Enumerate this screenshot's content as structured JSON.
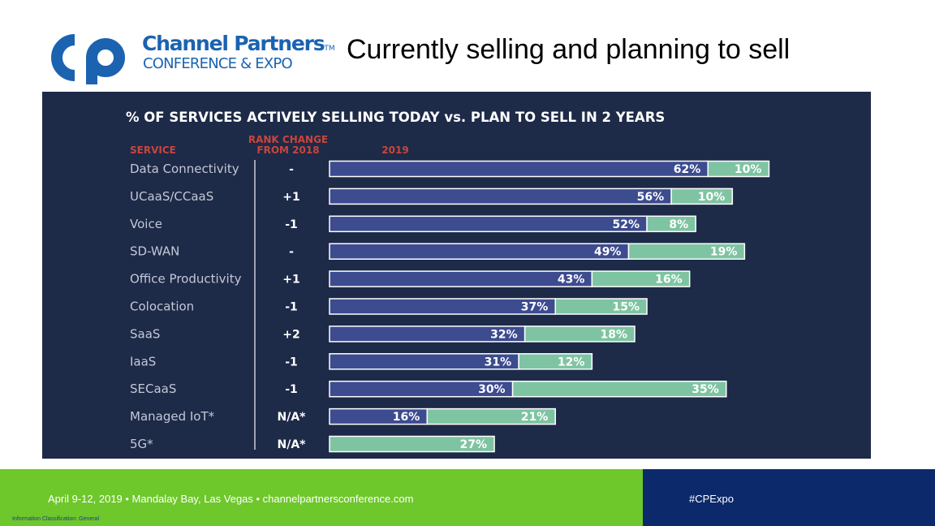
{
  "header": {
    "logo_name": "Channel Partners",
    "logo_trademark": "TM",
    "logo_sub": "CONFERENCE & EXPO",
    "slide_title": "Currently selling and planning to sell"
  },
  "footer": {
    "event_info": "April 9-12, 2019 • Mandalay Bay, Las Vegas • channelpartnersconference.com",
    "classification": "Information Classification: General",
    "hashtag": "#CPExpo"
  },
  "colors": {
    "brand_blue": "#1b63b0",
    "panel_bg": "#1d2a48",
    "bar_selling": "#3d4b8f",
    "bar_plan": "#7fc4a2",
    "header_red": "#c9453c",
    "footer_green": "#6ec72b",
    "footer_navy": "#0c2a6b"
  },
  "chart_data": {
    "type": "bar",
    "orientation": "horizontal",
    "stacked": true,
    "title": "% OF SERVICES ACTIVELY SELLING TODAY vs. PLAN TO SELL IN 2 YEARS",
    "column_headers": {
      "service": "SERVICE",
      "rank_change": "RANK CHANGE\nFROM 2018",
      "year": "2019"
    },
    "categories": [
      "Data Connectivity",
      "UCaaS/CCaaS",
      "Voice",
      "SD-WAN",
      "Office Productivity",
      "Colocation",
      "SaaS",
      "IaaS",
      "SECaaS",
      "Managed IoT*",
      "5G*"
    ],
    "rank_change": [
      "-",
      "+1",
      "-1",
      "-",
      "+1",
      "-1",
      "+2",
      "-1",
      "-1",
      "N/A*",
      "N/A*"
    ],
    "series": [
      {
        "name": "Actively selling today",
        "values": [
          62,
          56,
          52,
          49,
          43,
          37,
          32,
          31,
          30,
          16,
          0
        ]
      },
      {
        "name": "Plan to sell in 2 years",
        "values": [
          10,
          10,
          8,
          19,
          16,
          15,
          18,
          12,
          35,
          21,
          27
        ]
      }
    ],
    "data_labels": {
      "selling": [
        "62%",
        "56%",
        "52%",
        "49%",
        "43%",
        "37%",
        "32%",
        "31%",
        "30%",
        "16%",
        ""
      ],
      "plan": [
        "10%",
        "10%",
        "8%",
        "19%",
        "16%",
        "15%",
        "18%",
        "12%",
        "35%",
        "21%",
        "27%"
      ]
    },
    "xlim": [
      0,
      80
    ],
    "legend": "none"
  }
}
